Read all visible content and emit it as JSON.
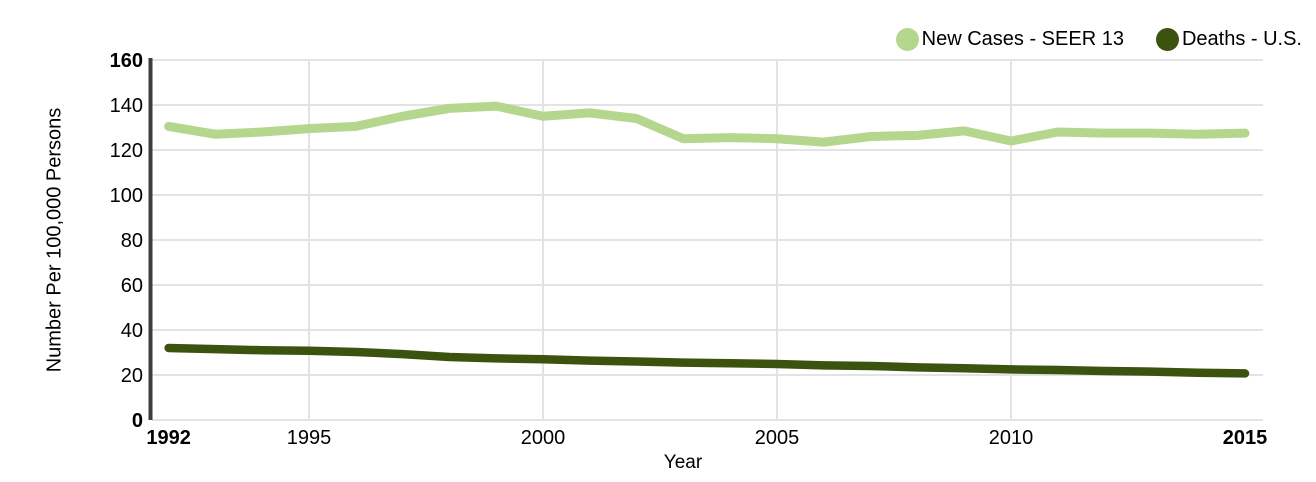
{
  "legend": {
    "items": [
      {
        "label": "New Cases - SEER 13",
        "color": "#b4d78d"
      },
      {
        "label": "Deaths - U.S.",
        "color": "#3b530f"
      }
    ]
  },
  "axes": {
    "y_title": "Number Per 100,000 Persons",
    "x_title": "Year"
  },
  "chart_data": {
    "type": "line",
    "title": "",
    "xlabel": "Year",
    "ylabel": "Number Per 100,000 Persons",
    "x": [
      1992,
      1993,
      1994,
      1995,
      1996,
      1997,
      1998,
      1999,
      2000,
      2001,
      2002,
      2003,
      2004,
      2005,
      2006,
      2007,
      2008,
      2009,
      2010,
      2011,
      2012,
      2013,
      2014,
      2015
    ],
    "series": [
      {
        "name": "New Cases - SEER 13",
        "color": "#b4d78d",
        "values": [
          130.5,
          127,
          128,
          129.5,
          130.5,
          135,
          138.5,
          139.5,
          135,
          136.5,
          134,
          125,
          125.5,
          125,
          123.5,
          126,
          126.5,
          128.5,
          124,
          128,
          127.5,
          127.5,
          127,
          127.5
        ]
      },
      {
        "name": "Deaths - U.S.",
        "color": "#3b530f",
        "values": [
          32,
          31.5,
          31,
          30.8,
          30.2,
          29.3,
          28,
          27.4,
          27,
          26.4,
          26,
          25.5,
          25.2,
          24.9,
          24.3,
          24,
          23.4,
          23,
          22.5,
          22.2,
          21.8,
          21.5,
          21,
          20.7
        ]
      }
    ],
    "ylim": [
      0,
      160
    ],
    "y_ticks": [
      0,
      20,
      40,
      60,
      80,
      100,
      120,
      140,
      160
    ],
    "x_ticks": [
      1992,
      1995,
      2000,
      2005,
      2010,
      2015
    ],
    "bold_x_ticks": [
      1992,
      2015
    ],
    "bold_y_ticks": [
      0,
      160
    ],
    "vertical_gridline_years": [
      1995,
      2000,
      2005,
      2010
    ],
    "grid": true,
    "legend_position": "top-right",
    "colors": {
      "axis": "#3e3e3e",
      "grid": "#e3e3e3",
      "tick_text": "#000000"
    }
  }
}
